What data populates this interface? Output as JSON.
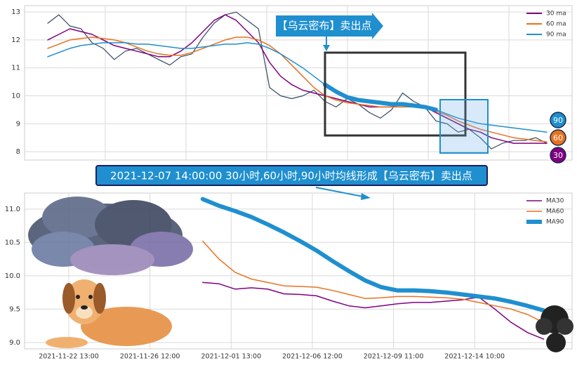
{
  "chart_data": [
    {
      "type": "line",
      "ylim": [
        7.7,
        13.23
      ],
      "yticks": [
        8,
        9,
        10,
        11,
        12,
        13
      ],
      "grid": true,
      "price": {
        "color": "#34495e",
        "values": [
          12.6,
          12.9,
          12.5,
          12.4,
          11.9,
          11.7,
          11.3,
          11.6,
          11.7,
          11.5,
          11.3,
          11.1,
          11.4,
          11.5,
          12.1,
          12.6,
          12.9,
          13.0,
          12.7,
          12.4,
          10.3,
          10.0,
          9.9,
          10.0,
          10.2,
          9.8,
          9.6,
          9.9,
          9.7,
          9.4,
          9.2,
          9.5,
          10.1,
          9.8,
          9.6,
          9.1,
          9.0,
          8.7,
          8.8,
          8.5,
          8.1,
          8.3,
          8.4,
          8.4,
          8.5,
          8.3
        ]
      },
      "series": [
        {
          "name": "30 ma",
          "badge": "30",
          "color": "#800080",
          "values": [
            12.0,
            12.2,
            12.4,
            12.3,
            12.2,
            12.0,
            11.8,
            11.7,
            11.6,
            11.5,
            11.4,
            11.4,
            11.6,
            11.9,
            12.3,
            12.7,
            12.9,
            12.7,
            12.3,
            11.9,
            11.2,
            10.7,
            10.4,
            10.2,
            10.1,
            10.0,
            9.9,
            9.8,
            9.7,
            9.6,
            9.6,
            9.6,
            9.7,
            9.7,
            9.6,
            9.4,
            9.2,
            9.0,
            8.8,
            8.7,
            8.5,
            8.4,
            8.3,
            8.3,
            8.3,
            8.3
          ]
        },
        {
          "name": "60 ma",
          "badge": "60",
          "color": "#e8711f",
          "values": [
            11.7,
            11.85,
            12.0,
            12.05,
            12.1,
            12.05,
            12.0,
            11.9,
            11.75,
            11.6,
            11.5,
            11.45,
            11.45,
            11.55,
            11.7,
            11.85,
            12.0,
            12.1,
            12.1,
            12.0,
            11.8,
            11.5,
            11.1,
            10.7,
            10.3,
            10.0,
            9.85,
            9.75,
            9.7,
            9.65,
            9.6,
            9.6,
            9.6,
            9.6,
            9.55,
            9.45,
            9.3,
            9.1,
            8.95,
            8.8,
            8.7,
            8.6,
            8.5,
            8.45,
            8.4,
            8.35
          ]
        },
        {
          "name": "90 ma",
          "badge": "90",
          "color": "#1f8fcf",
          "values": [
            11.4,
            11.55,
            11.7,
            11.8,
            11.85,
            11.9,
            11.9,
            11.9,
            11.85,
            11.85,
            11.8,
            11.75,
            11.7,
            11.7,
            11.75,
            11.8,
            11.85,
            11.85,
            11.9,
            11.85,
            11.7,
            11.5,
            11.25,
            11.0,
            10.7,
            10.4,
            10.15,
            9.95,
            9.85,
            9.8,
            9.75,
            9.7,
            9.7,
            9.65,
            9.6,
            9.5,
            9.35,
            9.2,
            9.1,
            9.0,
            8.95,
            8.9,
            8.85,
            8.8,
            8.75,
            8.7
          ]
        }
      ],
      "annotation": "【乌云密布】卖出点"
    },
    {
      "type": "line",
      "banner": "2021-12-07 14:00:00 30小时,60小时,90小时均线形成【乌云密布】卖出点",
      "xlim": [
        -10.9,
        124
      ],
      "xticks": [
        {
          "value": 0,
          "label": "2021-11-22 13:00"
        },
        {
          "value": 20,
          "label": "2021-11-26 12:00"
        },
        {
          "value": 40,
          "label": "2021-12-01 13:00"
        },
        {
          "value": 60,
          "label": "2021-12-06 12:00"
        },
        {
          "value": 80,
          "label": "2021-12-09 11:00"
        },
        {
          "value": 100,
          "label": "2021-12-14 10:00"
        }
      ],
      "ylim": [
        8.905,
        11.24
      ],
      "yticks": [
        {
          "value": 9,
          "label": "9.0"
        },
        {
          "value": 9.5,
          "label": "9.5"
        },
        {
          "value": 10,
          "label": "10.0"
        },
        {
          "value": 10.5,
          "label": "10.5"
        },
        {
          "value": 11,
          "label": "11.0"
        }
      ],
      "grid": true,
      "x": [
        33,
        37,
        41,
        45,
        49,
        53,
        57,
        61,
        65,
        69,
        73,
        77,
        81,
        85,
        89,
        93,
        97,
        101,
        105,
        109,
        113,
        117
      ],
      "series": [
        {
          "name": "MA30",
          "color": "#800080",
          "width": 1.5,
          "values": [
            9.9,
            9.88,
            9.8,
            9.82,
            9.8,
            9.73,
            9.72,
            9.7,
            9.62,
            9.55,
            9.52,
            9.55,
            9.58,
            9.6,
            9.6,
            9.62,
            9.64,
            9.68,
            9.5,
            9.3,
            9.15,
            9.05
          ]
        },
        {
          "name": "MA60",
          "color": "#e8711f",
          "width": 1.5,
          "values": [
            10.52,
            10.25,
            10.05,
            9.95,
            9.9,
            9.85,
            9.84,
            9.83,
            9.78,
            9.72,
            9.66,
            9.67,
            9.69,
            9.69,
            9.68,
            9.67,
            9.65,
            9.6,
            9.55,
            9.5,
            9.42,
            9.3
          ]
        },
        {
          "name": "MA90",
          "color": "#1f8fcf",
          "width": 6,
          "values": [
            11.15,
            11.05,
            10.97,
            10.88,
            10.77,
            10.65,
            10.52,
            10.38,
            10.22,
            10.07,
            9.93,
            9.83,
            9.78,
            9.78,
            9.77,
            9.75,
            9.72,
            9.69,
            9.66,
            9.61,
            9.55,
            9.48
          ]
        }
      ]
    }
  ]
}
